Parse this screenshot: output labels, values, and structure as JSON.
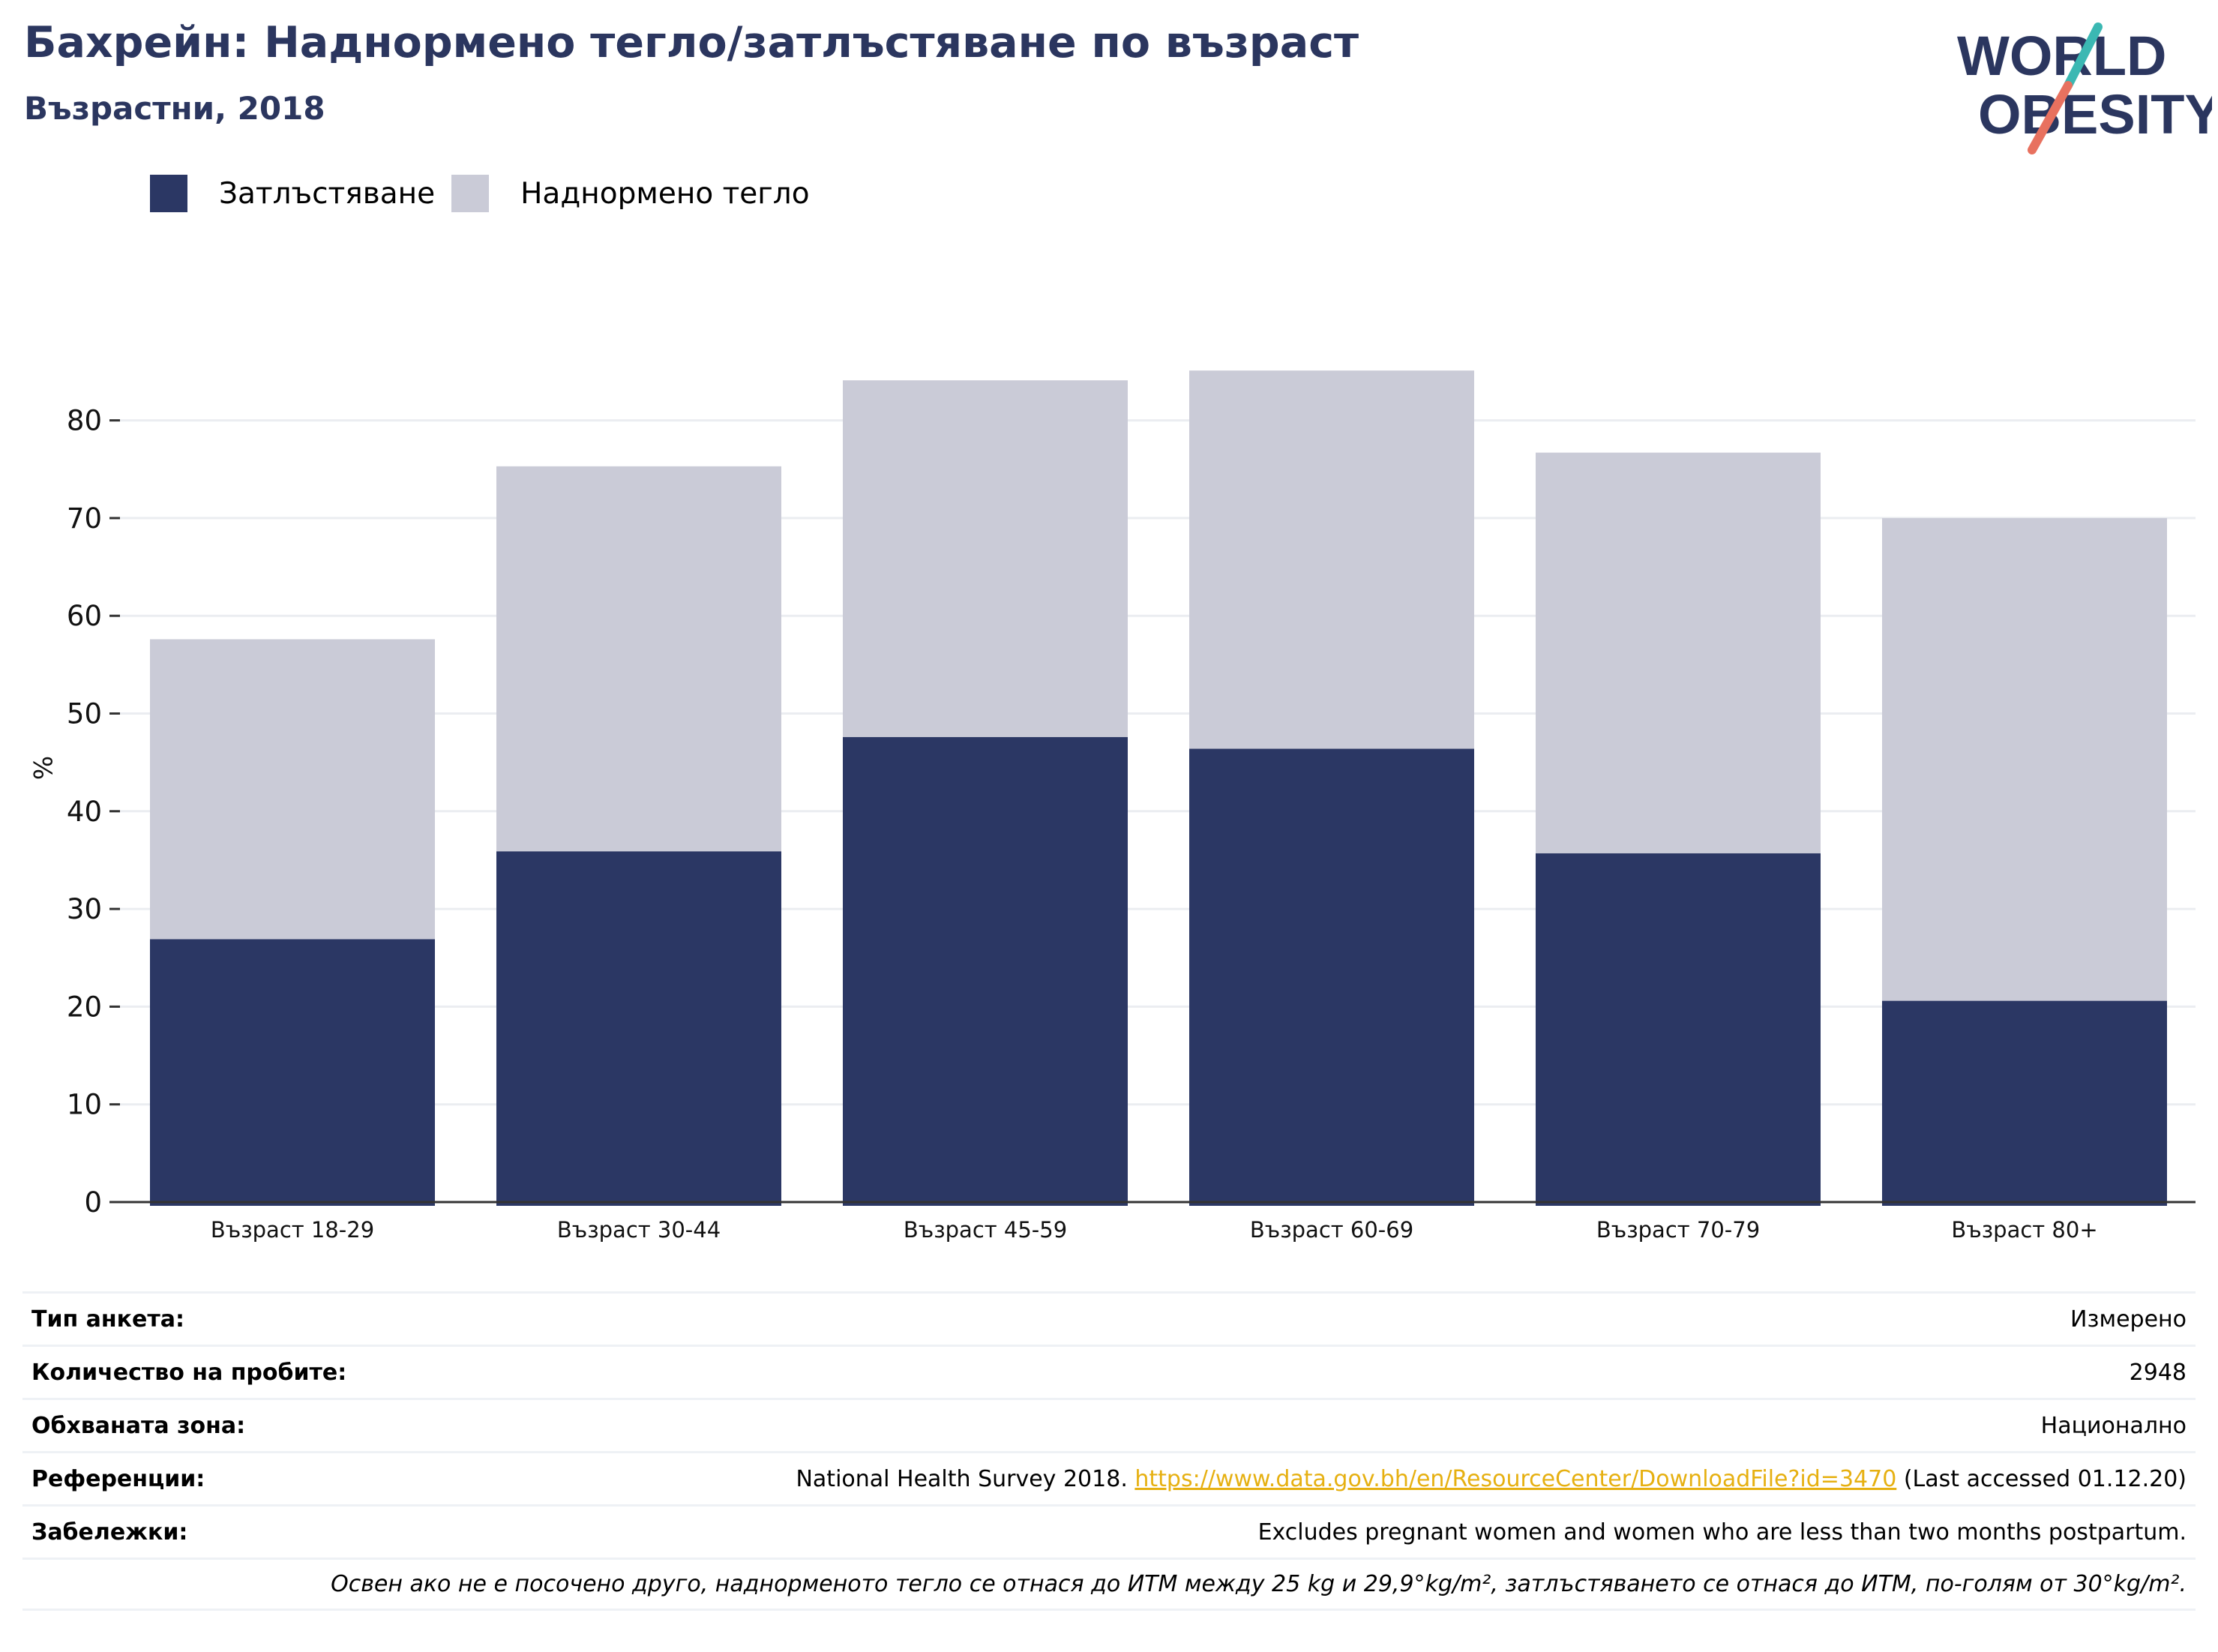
{
  "header": {
    "title": "Бахрейн: Наднормено тегло/затлъстяване по възраст",
    "subtitle": "Възрастни, 2018"
  },
  "logo": {
    "line1": "WORLD",
    "line2": "OBESITY",
    "icon": "world-obesity-logo"
  },
  "colors": {
    "obesity": "#2b3764",
    "overweight": "#cacbd7",
    "accent_teal": "#3bb8b3",
    "accent_coral": "#e8715f",
    "brand_text": "#2b365f"
  },
  "chart_data": {
    "type": "bar",
    "stacked": true,
    "categories": [
      "Възраст 18-29",
      "Възраст 30-44",
      "Възраст 45-59",
      "Възраст 60-69",
      "Възраст 70-79",
      "Възраст 80+"
    ],
    "series": [
      {
        "name": "Затлъстяване",
        "values": [
          26.9,
          35.9,
          47.6,
          46.4,
          35.7,
          20.6
        ]
      },
      {
        "name": "Наднормено тегло",
        "values": [
          30.7,
          39.4,
          36.5,
          38.7,
          41.0,
          49.4
        ]
      }
    ],
    "ylabel": "%",
    "ylim": [
      0,
      90
    ],
    "yticks": [
      0,
      10,
      20,
      30,
      40,
      50,
      60,
      70,
      80
    ],
    "grid": true,
    "legend": "top-left"
  },
  "meta": {
    "rows": [
      {
        "label": "Тип анкета:",
        "value": "Измерено"
      },
      {
        "label": "Количество на пробите:",
        "value": "2948"
      },
      {
        "label": "Обхваната зона:",
        "value": "Национално"
      },
      {
        "label": "Референции:",
        "value_pre": "National Health Survey 2018. ",
        "link": "https://www.data.gov.bh/en/ResourceCenter/DownloadFile?id=3470",
        "value_post": " (Last accessed 01.12.20)"
      },
      {
        "label": "Забележки:",
        "value": "Excludes pregnant women and women who are less than two months postpartum."
      }
    ],
    "footnote": "Освен ако не е посочено друго, наднорменото тегло се отнася до ИТМ между 25 kg и 29,9°kg/m², затлъстяването се отнася до ИТМ, по-голям от 30°kg/m²."
  }
}
